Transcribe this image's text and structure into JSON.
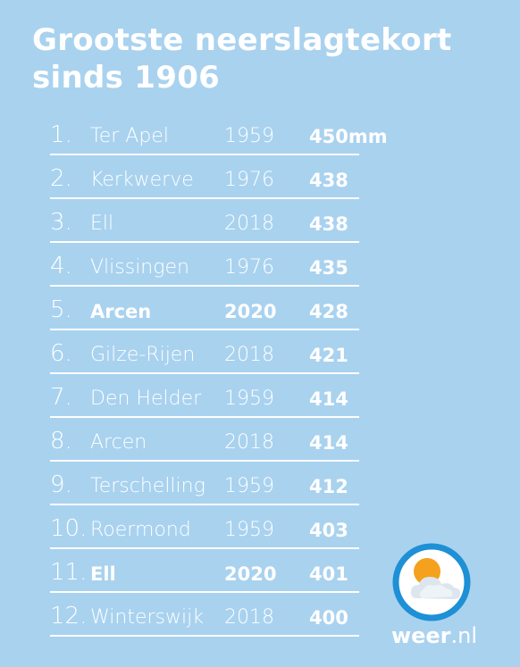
{
  "title": {
    "line1": "Grootste neerslagtekort",
    "line2": "sinds 1906"
  },
  "rows": [
    {
      "rank": "1.",
      "place": "Ter Apel",
      "year": "1959",
      "value": "450mm",
      "highlight": false
    },
    {
      "rank": "2.",
      "place": "Kerkwerve",
      "year": "1976",
      "value": "438",
      "highlight": false
    },
    {
      "rank": "3.",
      "place": "Ell",
      "year": "2018",
      "value": "438",
      "highlight": false
    },
    {
      "rank": "4.",
      "place": "Vlissingen",
      "year": "1976",
      "value": "435",
      "highlight": false
    },
    {
      "rank": "5.",
      "place": "Arcen",
      "year": "2020",
      "value": "428",
      "highlight": true
    },
    {
      "rank": "6.",
      "place": "Gilze-Rijen",
      "year": "2018",
      "value": "421",
      "highlight": false
    },
    {
      "rank": "7.",
      "place": "Den Helder",
      "year": "1959",
      "value": "414",
      "highlight": false
    },
    {
      "rank": "8.",
      "place": "Arcen",
      "year": "2018",
      "value": "414",
      "highlight": false
    },
    {
      "rank": "9.",
      "place": "Terschelling",
      "year": "1959",
      "value": "412",
      "highlight": false
    },
    {
      "rank": "10.",
      "place": "Roermond",
      "year": "1959",
      "value": "403",
      "highlight": false
    },
    {
      "rank": "11.",
      "place": "Ell",
      "year": "2020",
      "value": "401",
      "highlight": true
    },
    {
      "rank": "12.",
      "place": "Winterswijk",
      "year": "2018",
      "value": "400",
      "highlight": false
    }
  ],
  "logo": {
    "icon": "sun-cloud-icon",
    "brand_bold": "weer",
    "brand_rest": ".nl",
    "colors": {
      "ring": "#1e90d6",
      "sun": "#f4a11d",
      "cloud": "#e8eef3"
    }
  },
  "colors": {
    "background": "#a9d2ef",
    "text": "#ffffff"
  }
}
